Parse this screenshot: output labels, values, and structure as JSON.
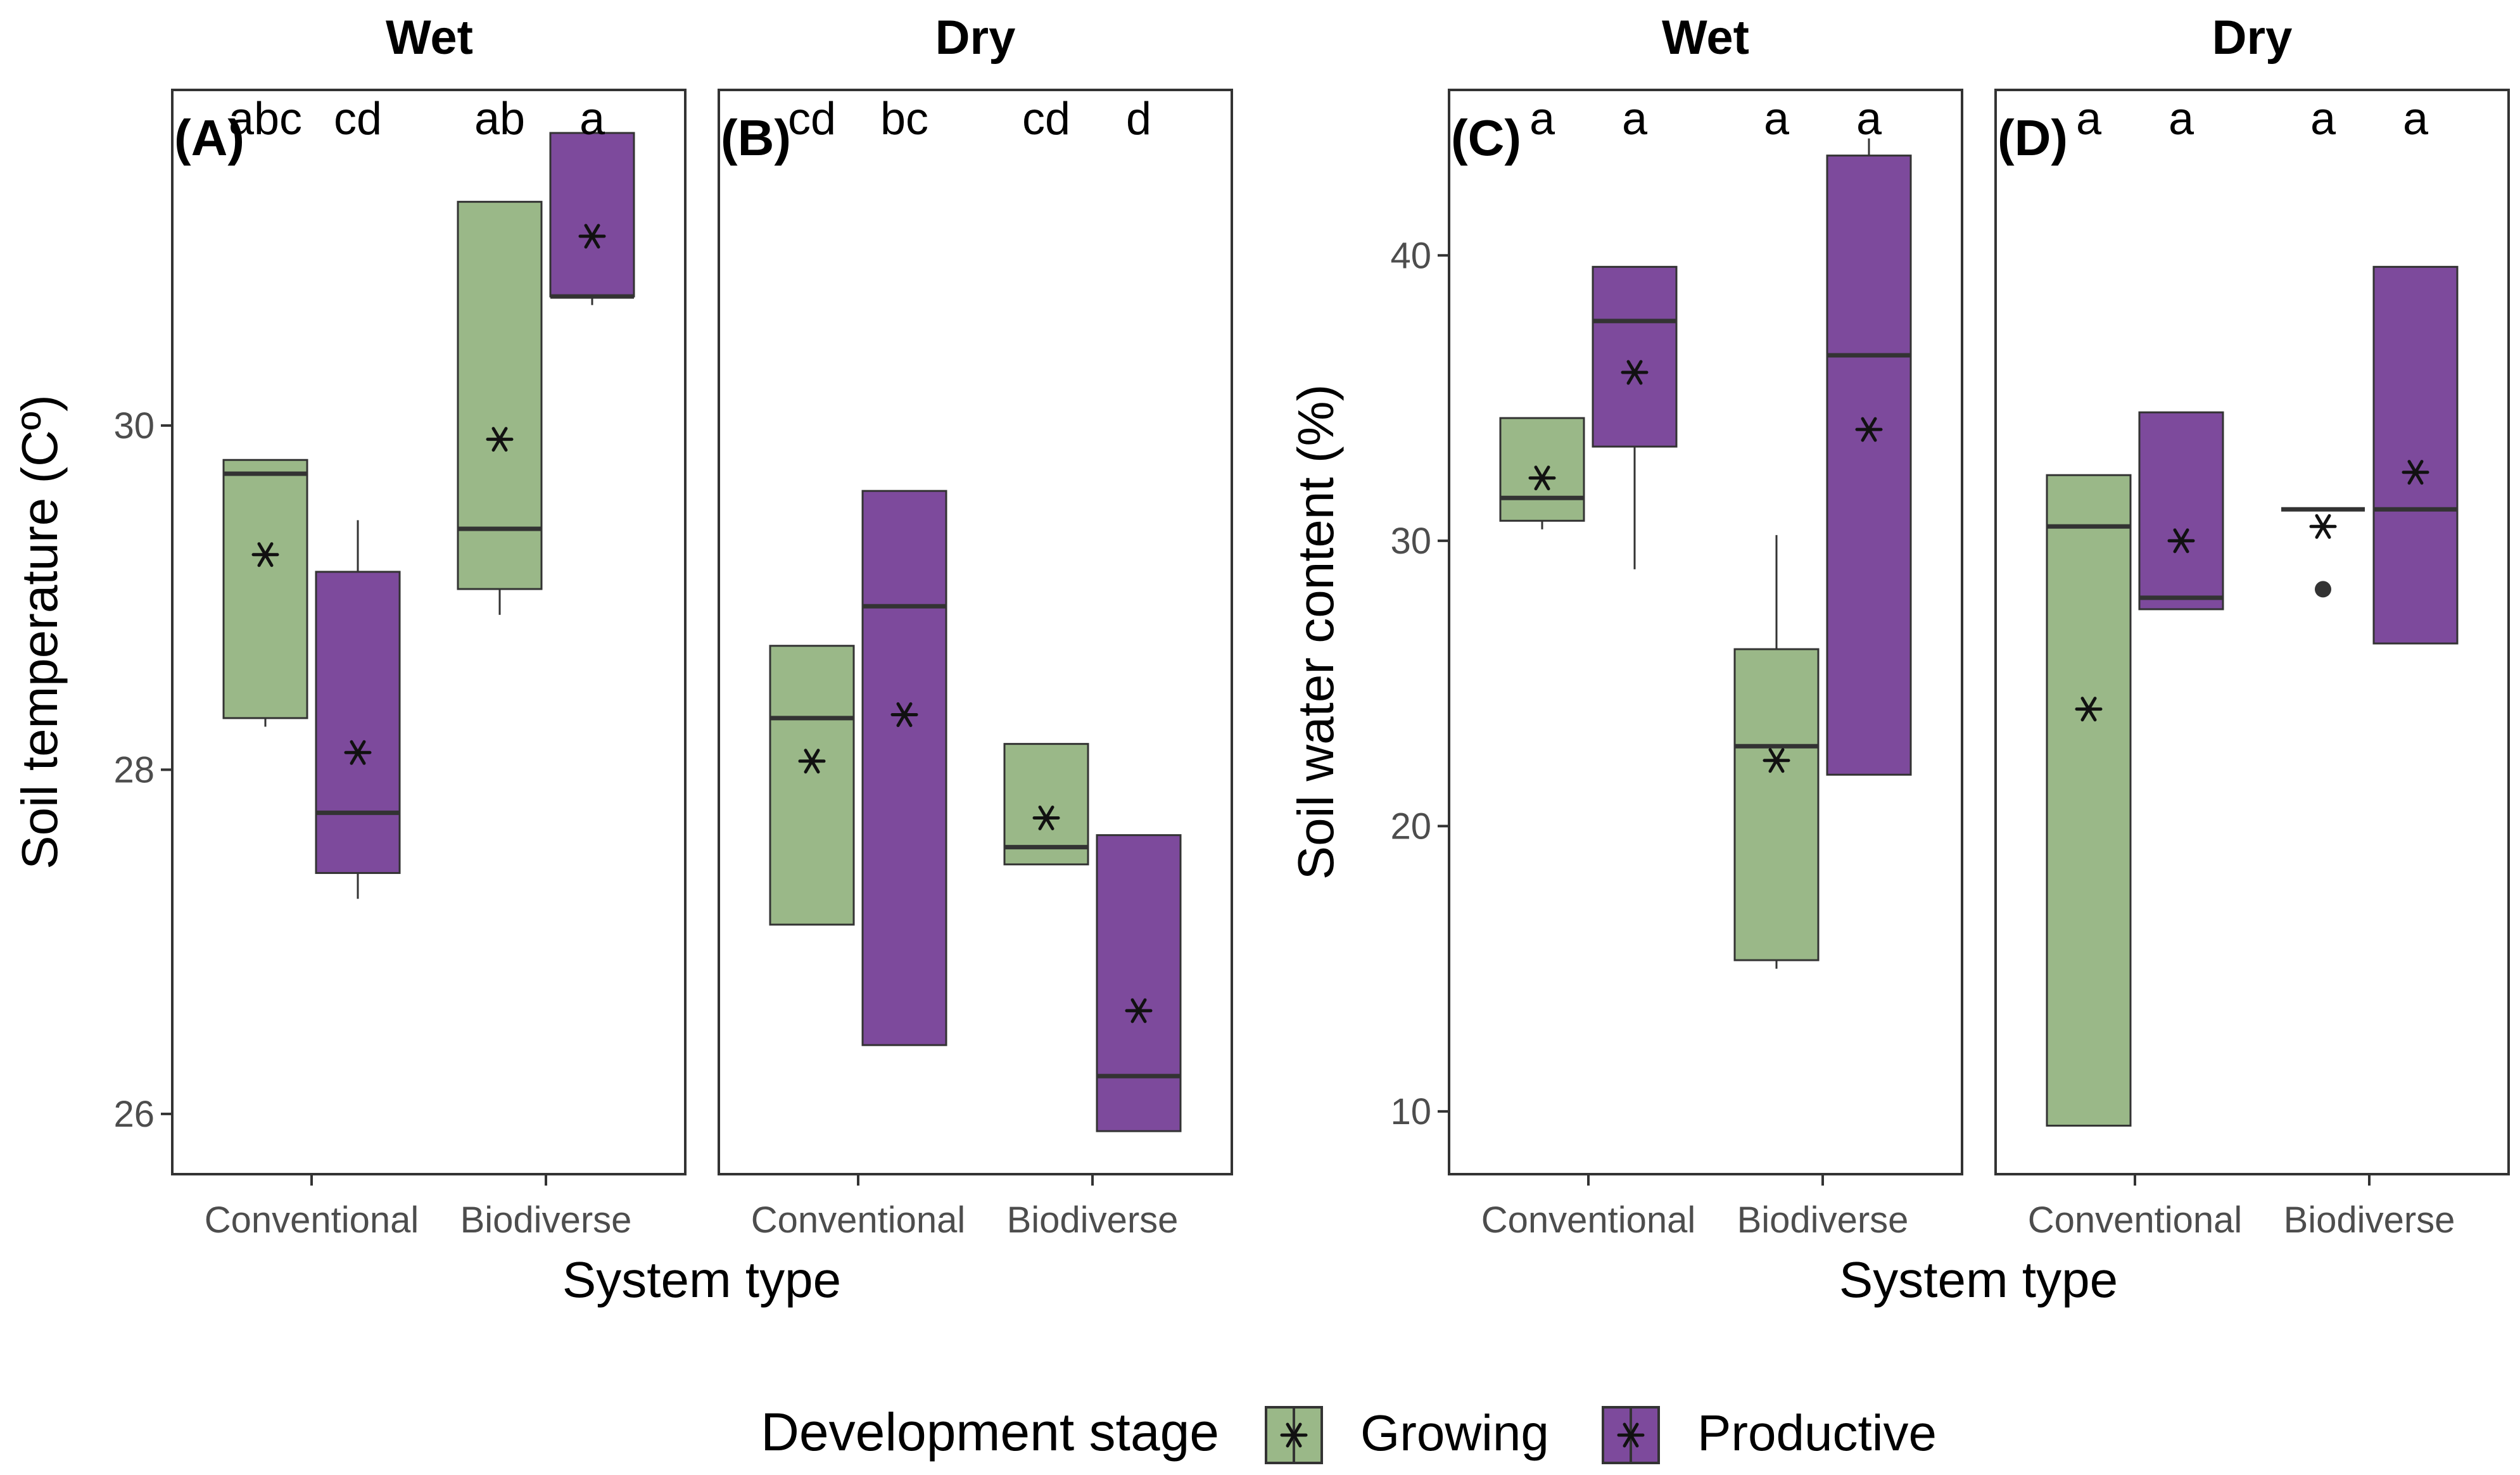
{
  "chart_data": [
    {
      "type": "box",
      "panel": "(A)",
      "facet_title": "Wet",
      "ylabel": "Soil temperature (Cº)",
      "xlabel": "System type",
      "ylim": [
        25.65,
        31.95
      ],
      "yticks": [
        26,
        28,
        30
      ],
      "categories": [
        "Conventional",
        "Biodiverse"
      ],
      "boxes": [
        {
          "category": "Conventional",
          "stage": "Growing",
          "low": 28.25,
          "q1": 28.3,
          "median": 29.72,
          "q3": 29.8,
          "high": 29.8,
          "mean": 29.25,
          "letter": "abc"
        },
        {
          "category": "Conventional",
          "stage": "Productive",
          "low": 27.25,
          "q1": 27.4,
          "median": 27.75,
          "q3": 29.15,
          "high": 29.45,
          "mean": 28.1,
          "letter": "cd"
        },
        {
          "category": "Biodiverse",
          "stage": "Growing",
          "low": 28.9,
          "q1": 29.05,
          "median": 29.4,
          "q3": 31.3,
          "high": 31.3,
          "mean": 29.92,
          "letter": "ab"
        },
        {
          "category": "Biodiverse",
          "stage": "Productive",
          "low": 30.7,
          "q1": 30.75,
          "median": 30.75,
          "q3": 31.7,
          "high": 31.7,
          "mean": 31.1,
          "letter": "a"
        }
      ]
    },
    {
      "type": "box",
      "panel": "(B)",
      "facet_title": "Dry",
      "xlabel": "System type",
      "ylim": [
        25.65,
        31.95
      ],
      "categories": [
        "Conventional",
        "Biodiverse"
      ],
      "boxes": [
        {
          "category": "Conventional",
          "stage": "Growing",
          "low": 27.1,
          "q1": 27.1,
          "median": 28.3,
          "q3": 28.72,
          "high": 28.72,
          "mean": 28.05,
          "letter": "cd"
        },
        {
          "category": "Conventional",
          "stage": "Productive",
          "low": 26.4,
          "q1": 26.4,
          "median": 28.95,
          "q3": 29.62,
          "high": 29.62,
          "mean": 28.32,
          "letter": "bc"
        },
        {
          "category": "Biodiverse",
          "stage": "Growing",
          "low": 27.45,
          "q1": 27.45,
          "median": 27.55,
          "q3": 28.15,
          "high": 28.15,
          "mean": 27.72,
          "letter": "cd"
        },
        {
          "category": "Biodiverse",
          "stage": "Productive",
          "low": 25.9,
          "q1": 25.9,
          "median": 26.22,
          "q3": 27.62,
          "high": 27.62,
          "mean": 26.6,
          "letter": "d"
        }
      ]
    },
    {
      "type": "box",
      "panel": "(C)",
      "facet_title": "Wet",
      "ylabel": "Soil water content (%)",
      "xlabel": "System type",
      "ylim": [
        7.8,
        45.8
      ],
      "yticks": [
        10,
        20,
        30,
        40
      ],
      "categories": [
        "Conventional",
        "Biodiverse"
      ],
      "boxes": [
        {
          "category": "Conventional",
          "stage": "Growing",
          "low": 30.4,
          "q1": 30.7,
          "median": 31.5,
          "q3": 34.3,
          "high": 34.3,
          "mean": 32.2,
          "letter": "a"
        },
        {
          "category": "Conventional",
          "stage": "Productive",
          "low": 29.0,
          "q1": 33.3,
          "median": 37.7,
          "q3": 39.6,
          "high": 39.6,
          "mean": 35.9,
          "letter": "a"
        },
        {
          "category": "Biodiverse",
          "stage": "Growing",
          "low": 15.0,
          "q1": 15.3,
          "median": 22.8,
          "q3": 26.2,
          "high": 30.2,
          "mean": 22.3,
          "letter": "a"
        },
        {
          "category": "Biodiverse",
          "stage": "Productive",
          "low": 21.8,
          "q1": 21.8,
          "median": 36.5,
          "q3": 43.5,
          "high": 44.1,
          "mean": 33.9,
          "letter": "a"
        }
      ]
    },
    {
      "type": "box",
      "panel": "(D)",
      "facet_title": "Dry",
      "xlabel": "System type",
      "ylim": [
        7.8,
        45.8
      ],
      "categories": [
        "Conventional",
        "Biodiverse"
      ],
      "boxes": [
        {
          "category": "Conventional",
          "stage": "Growing",
          "low": 9.5,
          "q1": 9.5,
          "median": 30.5,
          "q3": 32.3,
          "high": 32.3,
          "mean": 24.1,
          "letter": "a"
        },
        {
          "category": "Conventional",
          "stage": "Productive",
          "low": 27.6,
          "q1": 27.6,
          "median": 28.0,
          "q3": 34.5,
          "high": 34.5,
          "mean": 30.0,
          "letter": "a"
        },
        {
          "category": "Biodiverse",
          "stage": "Growing",
          "low": 31.1,
          "q1": 31.1,
          "median": 31.1,
          "q3": 31.1,
          "high": 31.1,
          "mean": 30.5,
          "outliers": [
            28.3
          ],
          "letter": "a"
        },
        {
          "category": "Biodiverse",
          "stage": "Productive",
          "low": 26.4,
          "q1": 26.4,
          "median": 31.1,
          "q3": 39.6,
          "high": 39.6,
          "mean": 32.4,
          "letter": "a"
        }
      ]
    }
  ],
  "legend": {
    "title": "Development stage",
    "items": [
      {
        "label": "Growing",
        "color": "#9ab888"
      },
      {
        "label": "Productive",
        "color": "#7d4a9c"
      }
    ]
  },
  "colors": {
    "Growing": "#9ab888",
    "Productive": "#7d4a9c",
    "line": "#333333",
    "panel_border": "#333333"
  }
}
